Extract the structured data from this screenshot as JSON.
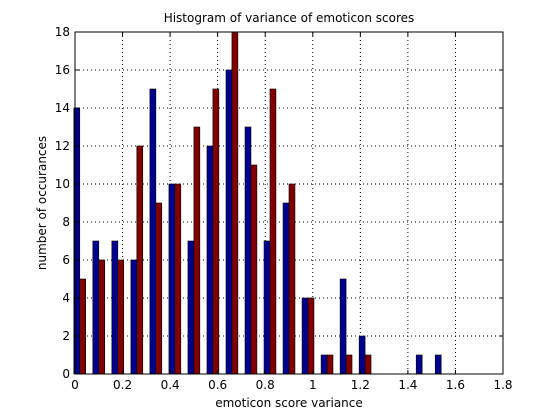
{
  "chart_data": {
    "type": "bar",
    "title": "Histogram of variance of emoticon scores",
    "xlabel": "emoticon score variance",
    "ylabel": "number of occurances",
    "xlim": [
      0,
      1.8
    ],
    "ylim": [
      0,
      18
    ],
    "xticks": [
      "0",
      "0.2",
      "0.4",
      "0.6",
      "0.8",
      "1",
      "1.2",
      "1.4",
      "1.6",
      "1.8"
    ],
    "yticks": [
      "0",
      "2",
      "4",
      "6",
      "8",
      "10",
      "12",
      "14",
      "16",
      "18"
    ],
    "grid": true,
    "bin_centers": [
      0.02,
      0.1,
      0.18,
      0.26,
      0.34,
      0.42,
      0.5,
      0.58,
      0.66,
      0.74,
      0.82,
      0.9,
      0.98,
      1.06,
      1.14,
      1.22,
      1.3,
      1.38,
      1.46,
      1.54,
      1.62
    ],
    "series": [
      {
        "color": "#00008f",
        "values": [
          14,
          7,
          7,
          6,
          15,
          10,
          7,
          12,
          16,
          13,
          7,
          9,
          4,
          1,
          5,
          2,
          0,
          0,
          1,
          1,
          0
        ]
      },
      {
        "color": "#800000",
        "values": [
          5,
          6,
          6,
          12,
          9,
          10,
          13,
          15,
          18,
          11,
          15,
          10,
          4,
          1,
          1,
          1,
          0,
          0,
          0,
          0,
          0
        ]
      }
    ]
  }
}
